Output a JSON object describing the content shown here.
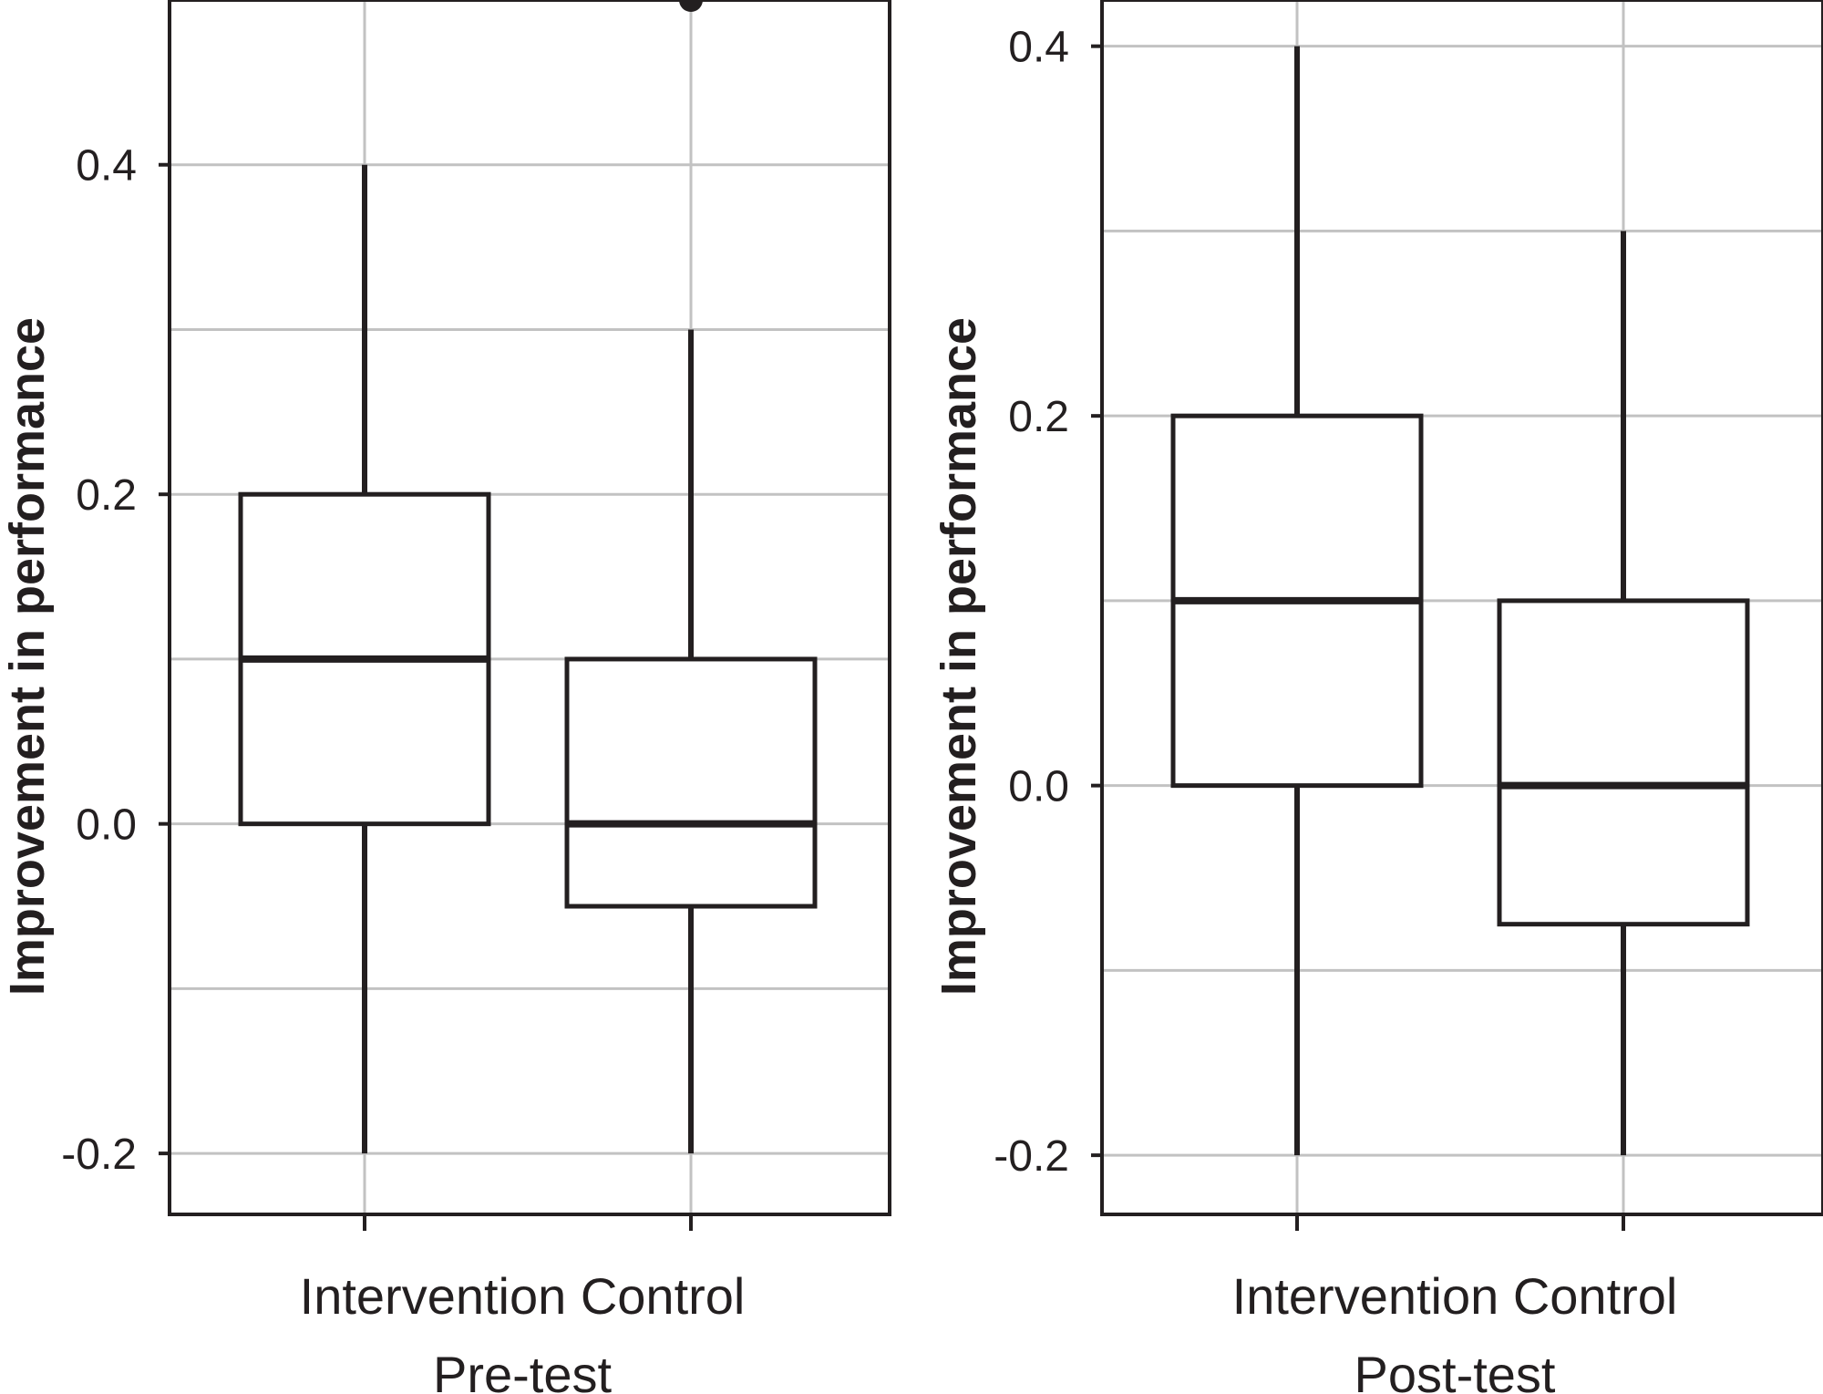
{
  "colors": {
    "ink": "#231f20",
    "grid": "#c2c2c2",
    "background": "#ffffff"
  },
  "chart_data": [
    {
      "type": "box",
      "panel_label": "Pre-test",
      "categories": [
        "Intervention",
        "Control"
      ],
      "category_line": "Intervention Control",
      "ylabel": "Improvement in performance",
      "ylim": [
        -0.237,
        0.5
      ],
      "yticks": [
        -0.2,
        0.0,
        0.2,
        0.4
      ],
      "ytick_labels": [
        "-0.2",
        "0.0",
        "0.2",
        "0.4"
      ],
      "grid": true,
      "boxes": [
        {
          "category": "Intervention",
          "whisker_low": -0.2,
          "q1": 0.0,
          "median": 0.1,
          "q3": 0.2,
          "whisker_high": 0.4,
          "outliers": []
        },
        {
          "category": "Control",
          "whisker_low": -0.2,
          "q1": -0.05,
          "median": 0.0,
          "q3": 0.1,
          "whisker_high": 0.3,
          "outliers": [
            0.5
          ]
        }
      ]
    },
    {
      "type": "box",
      "panel_label": "Post-test",
      "categories": [
        "Intervention",
        "Control"
      ],
      "category_line": "Intervention Control",
      "ylabel": "Improvement in performance",
      "ylim": [
        -0.232,
        0.425
      ],
      "yticks": [
        -0.2,
        0.0,
        0.2,
        0.4
      ],
      "ytick_labels": [
        "-0.2",
        "0.0",
        "0.2",
        "0.4"
      ],
      "grid": true,
      "boxes": [
        {
          "category": "Intervention",
          "whisker_low": -0.2,
          "q1": 0.0,
          "median": 0.1,
          "q3": 0.2,
          "whisker_high": 0.4,
          "outliers": []
        },
        {
          "category": "Control",
          "whisker_low": -0.2,
          "q1": -0.075,
          "median": 0.0,
          "q3": 0.1,
          "whisker_high": 0.3,
          "outliers": []
        }
      ]
    }
  ]
}
